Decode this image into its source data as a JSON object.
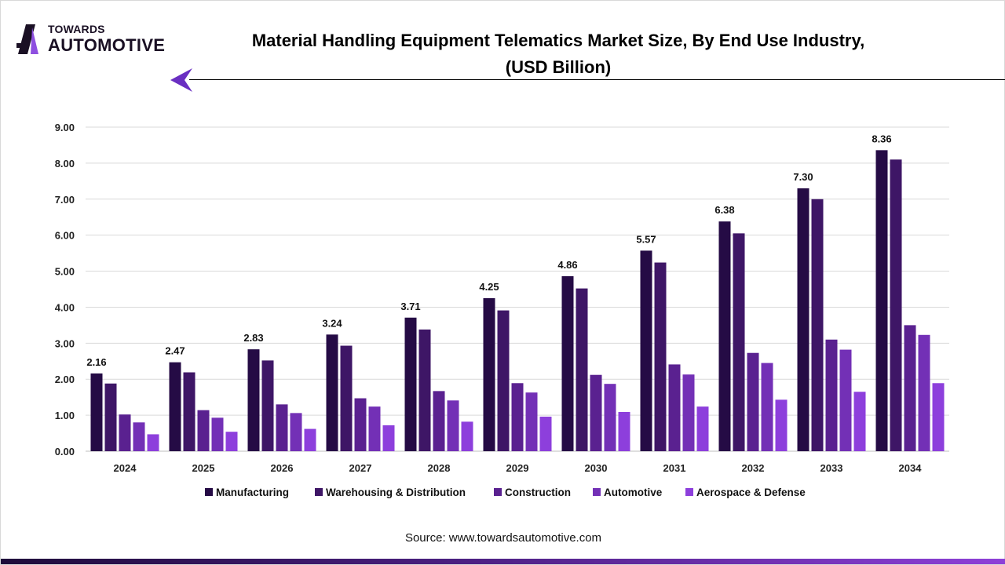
{
  "brand": {
    "line1": "TOWARDS",
    "line2": "AUTOMOTIVE",
    "accent": "#7b3fd4"
  },
  "header": {
    "title_line1": "Material Handling Equipment Telematics Market Size, By End Use Industry,",
    "title_line2": "(USD Billion)"
  },
  "source": "Source: www.towardsautomotive.com",
  "chart_data": {
    "type": "bar",
    "title": "Material Handling Equipment Telematics Market Size, By End Use Industry, (USD Billion)",
    "xlabel": "",
    "ylabel": "",
    "ylim": [
      0,
      9
    ],
    "yticks": [
      "0.00",
      "1.00",
      "2.00",
      "3.00",
      "4.00",
      "5.00",
      "6.00",
      "7.00",
      "8.00",
      "9.00"
    ],
    "grid": true,
    "legend_position": "bottom",
    "categories": [
      "2024",
      "2025",
      "2026",
      "2027",
      "2028",
      "2029",
      "2030",
      "2031",
      "2032",
      "2033",
      "2034"
    ],
    "series": [
      {
        "name": "Manufacturing",
        "color": "#250b45",
        "values": [
          2.16,
          2.47,
          2.83,
          3.24,
          3.71,
          4.25,
          4.86,
          5.57,
          6.38,
          7.3,
          8.36
        ],
        "labels": [
          "2.16",
          "2.47",
          "2.83",
          "3.24",
          "3.71",
          "4.25",
          "4.86",
          "5.57",
          "6.38",
          "7.30",
          "8.36"
        ]
      },
      {
        "name": "Warehousing & Distribution",
        "color": "#3e1666",
        "values": [
          1.88,
          2.19,
          2.52,
          2.93,
          3.38,
          3.91,
          4.52,
          5.24,
          6.05,
          7.0,
          8.1
        ]
      },
      {
        "name": "Construction",
        "color": "#5a2190",
        "values": [
          1.02,
          1.14,
          1.3,
          1.47,
          1.67,
          1.89,
          2.12,
          2.41,
          2.73,
          3.1,
          3.5
        ]
      },
      {
        "name": "Automotive",
        "color": "#7330b6",
        "values": [
          0.8,
          0.93,
          1.06,
          1.24,
          1.41,
          1.63,
          1.87,
          2.13,
          2.45,
          2.82,
          3.23
        ]
      },
      {
        "name": "Aerospace & Defense",
        "color": "#8d3fdc",
        "values": [
          0.47,
          0.54,
          0.62,
          0.72,
          0.82,
          0.96,
          1.09,
          1.24,
          1.43,
          1.65,
          1.89
        ]
      }
    ]
  }
}
